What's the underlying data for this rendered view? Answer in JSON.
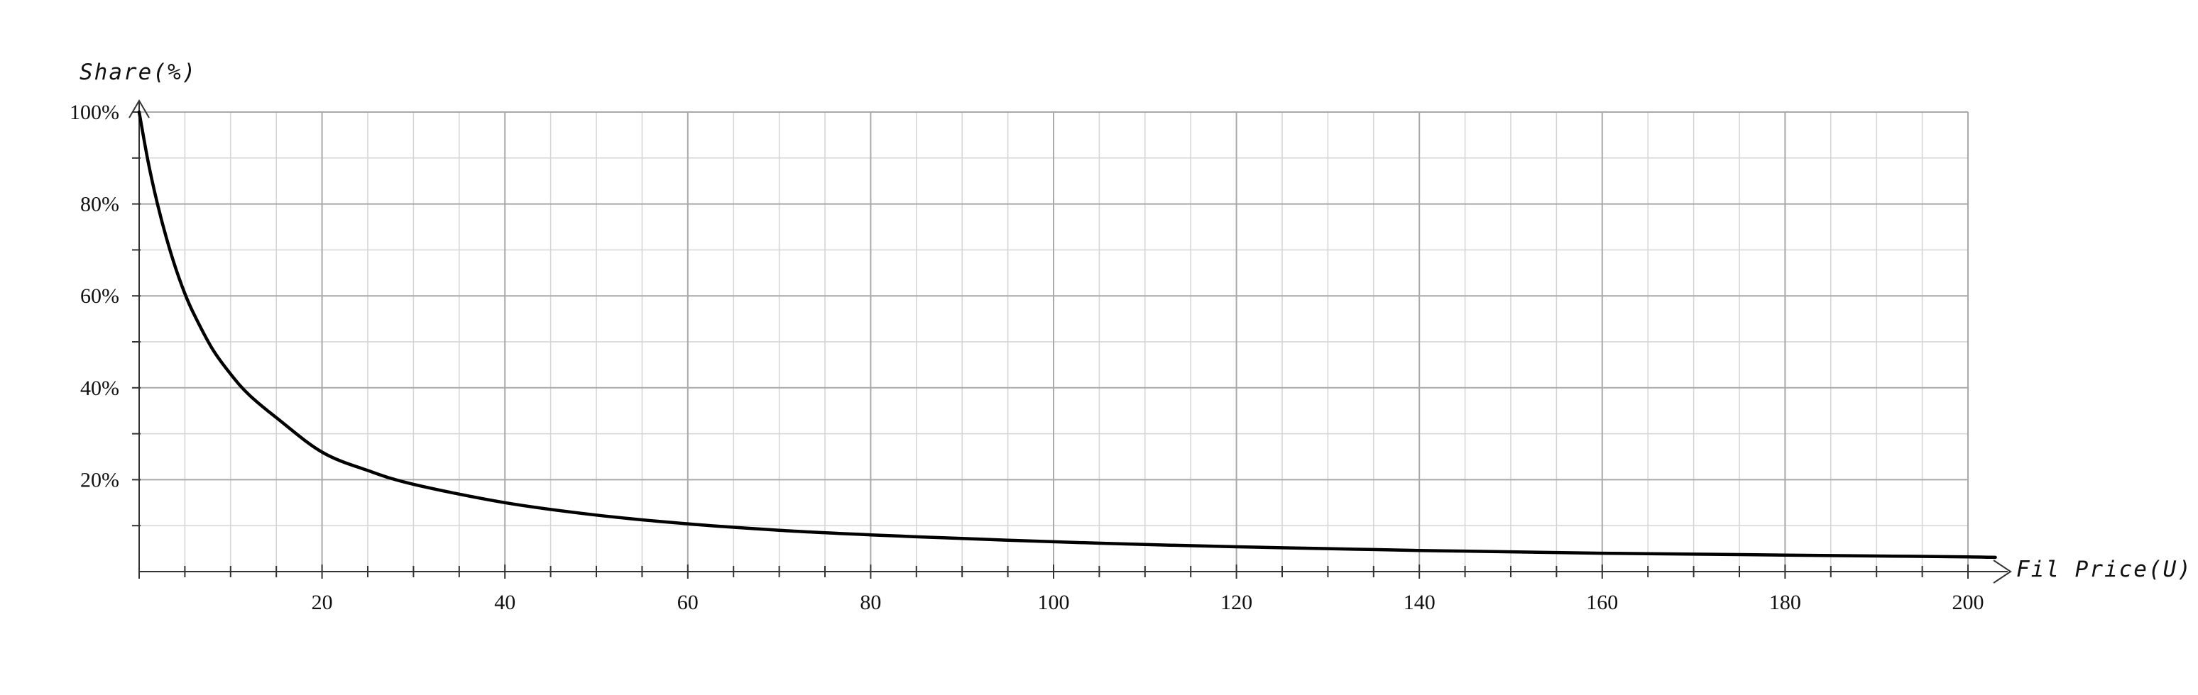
{
  "chart_data": {
    "type": "line",
    "title": "",
    "xlabel": "Fil Price(U)",
    "ylabel": "Share(%)",
    "xlim": [
      0,
      200
    ],
    "ylim": [
      0,
      100
    ],
    "x_ticks": [
      20,
      40,
      60,
      80,
      100,
      120,
      140,
      160,
      180,
      200
    ],
    "x_tick_labels": [
      "20",
      "40",
      "60",
      "80",
      "100",
      "120",
      "140",
      "160",
      "180",
      "200"
    ],
    "y_ticks": [
      20,
      40,
      60,
      80,
      100
    ],
    "y_tick_labels": [
      "20%",
      "40%",
      "60%",
      "80%",
      "100%"
    ],
    "grid": true,
    "legend": "none",
    "series": [
      {
        "color": "#000000",
        "x": [
          0,
          1,
          2,
          3,
          4,
          5,
          6,
          8,
          10,
          12,
          15,
          20,
          25,
          30,
          40,
          50,
          60,
          70,
          80,
          90,
          100,
          110,
          120,
          130,
          140,
          150,
          160,
          170,
          180,
          190,
          200,
          203
        ],
        "y": [
          100,
          89,
          80,
          72.5,
          66,
          60.5,
          56,
          48.5,
          43,
          38.5,
          33.5,
          26,
          22,
          19,
          15,
          12.3,
          10.4,
          9,
          8,
          7.2,
          6.5,
          5.9,
          5.4,
          5,
          4.6,
          4.3,
          4,
          3.8,
          3.6,
          3.4,
          3.2,
          3.1
        ]
      }
    ]
  }
}
